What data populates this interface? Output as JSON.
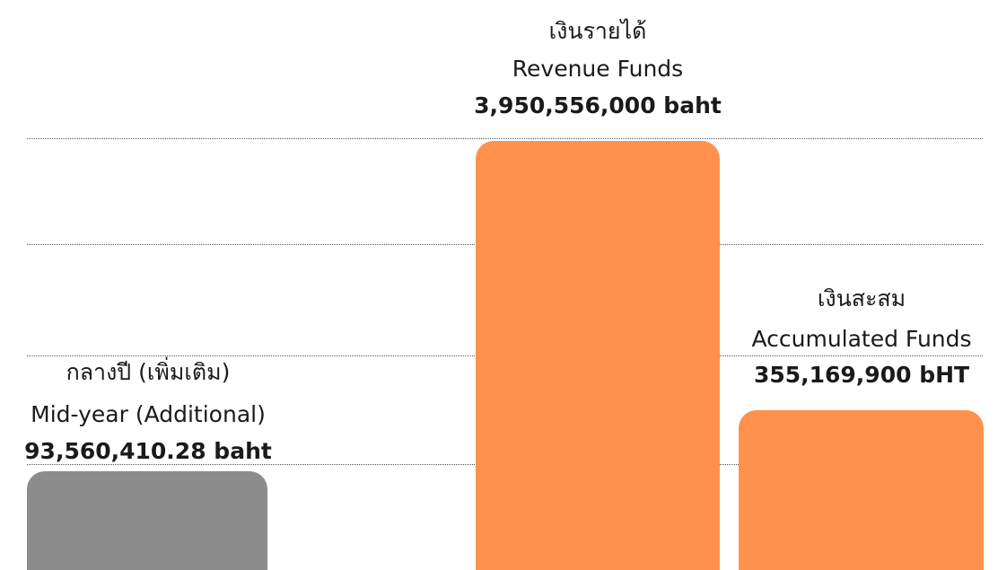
{
  "items": [
    {
      "label_th": "เงินรายได้",
      "label_en": "Revenue Funds",
      "amount": "3,950,556,000 baht"
    },
    {
      "label_th": "เงินสะสม",
      "label_en": "Accumulated Funds",
      "amount": "355,169,900 bHT"
    },
    {
      "label_th": "กลางปี (เพิ่มเติม)",
      "label_en": "Mid-year (Additional)",
      "amount": "93,560,410.28 baht"
    }
  ]
}
